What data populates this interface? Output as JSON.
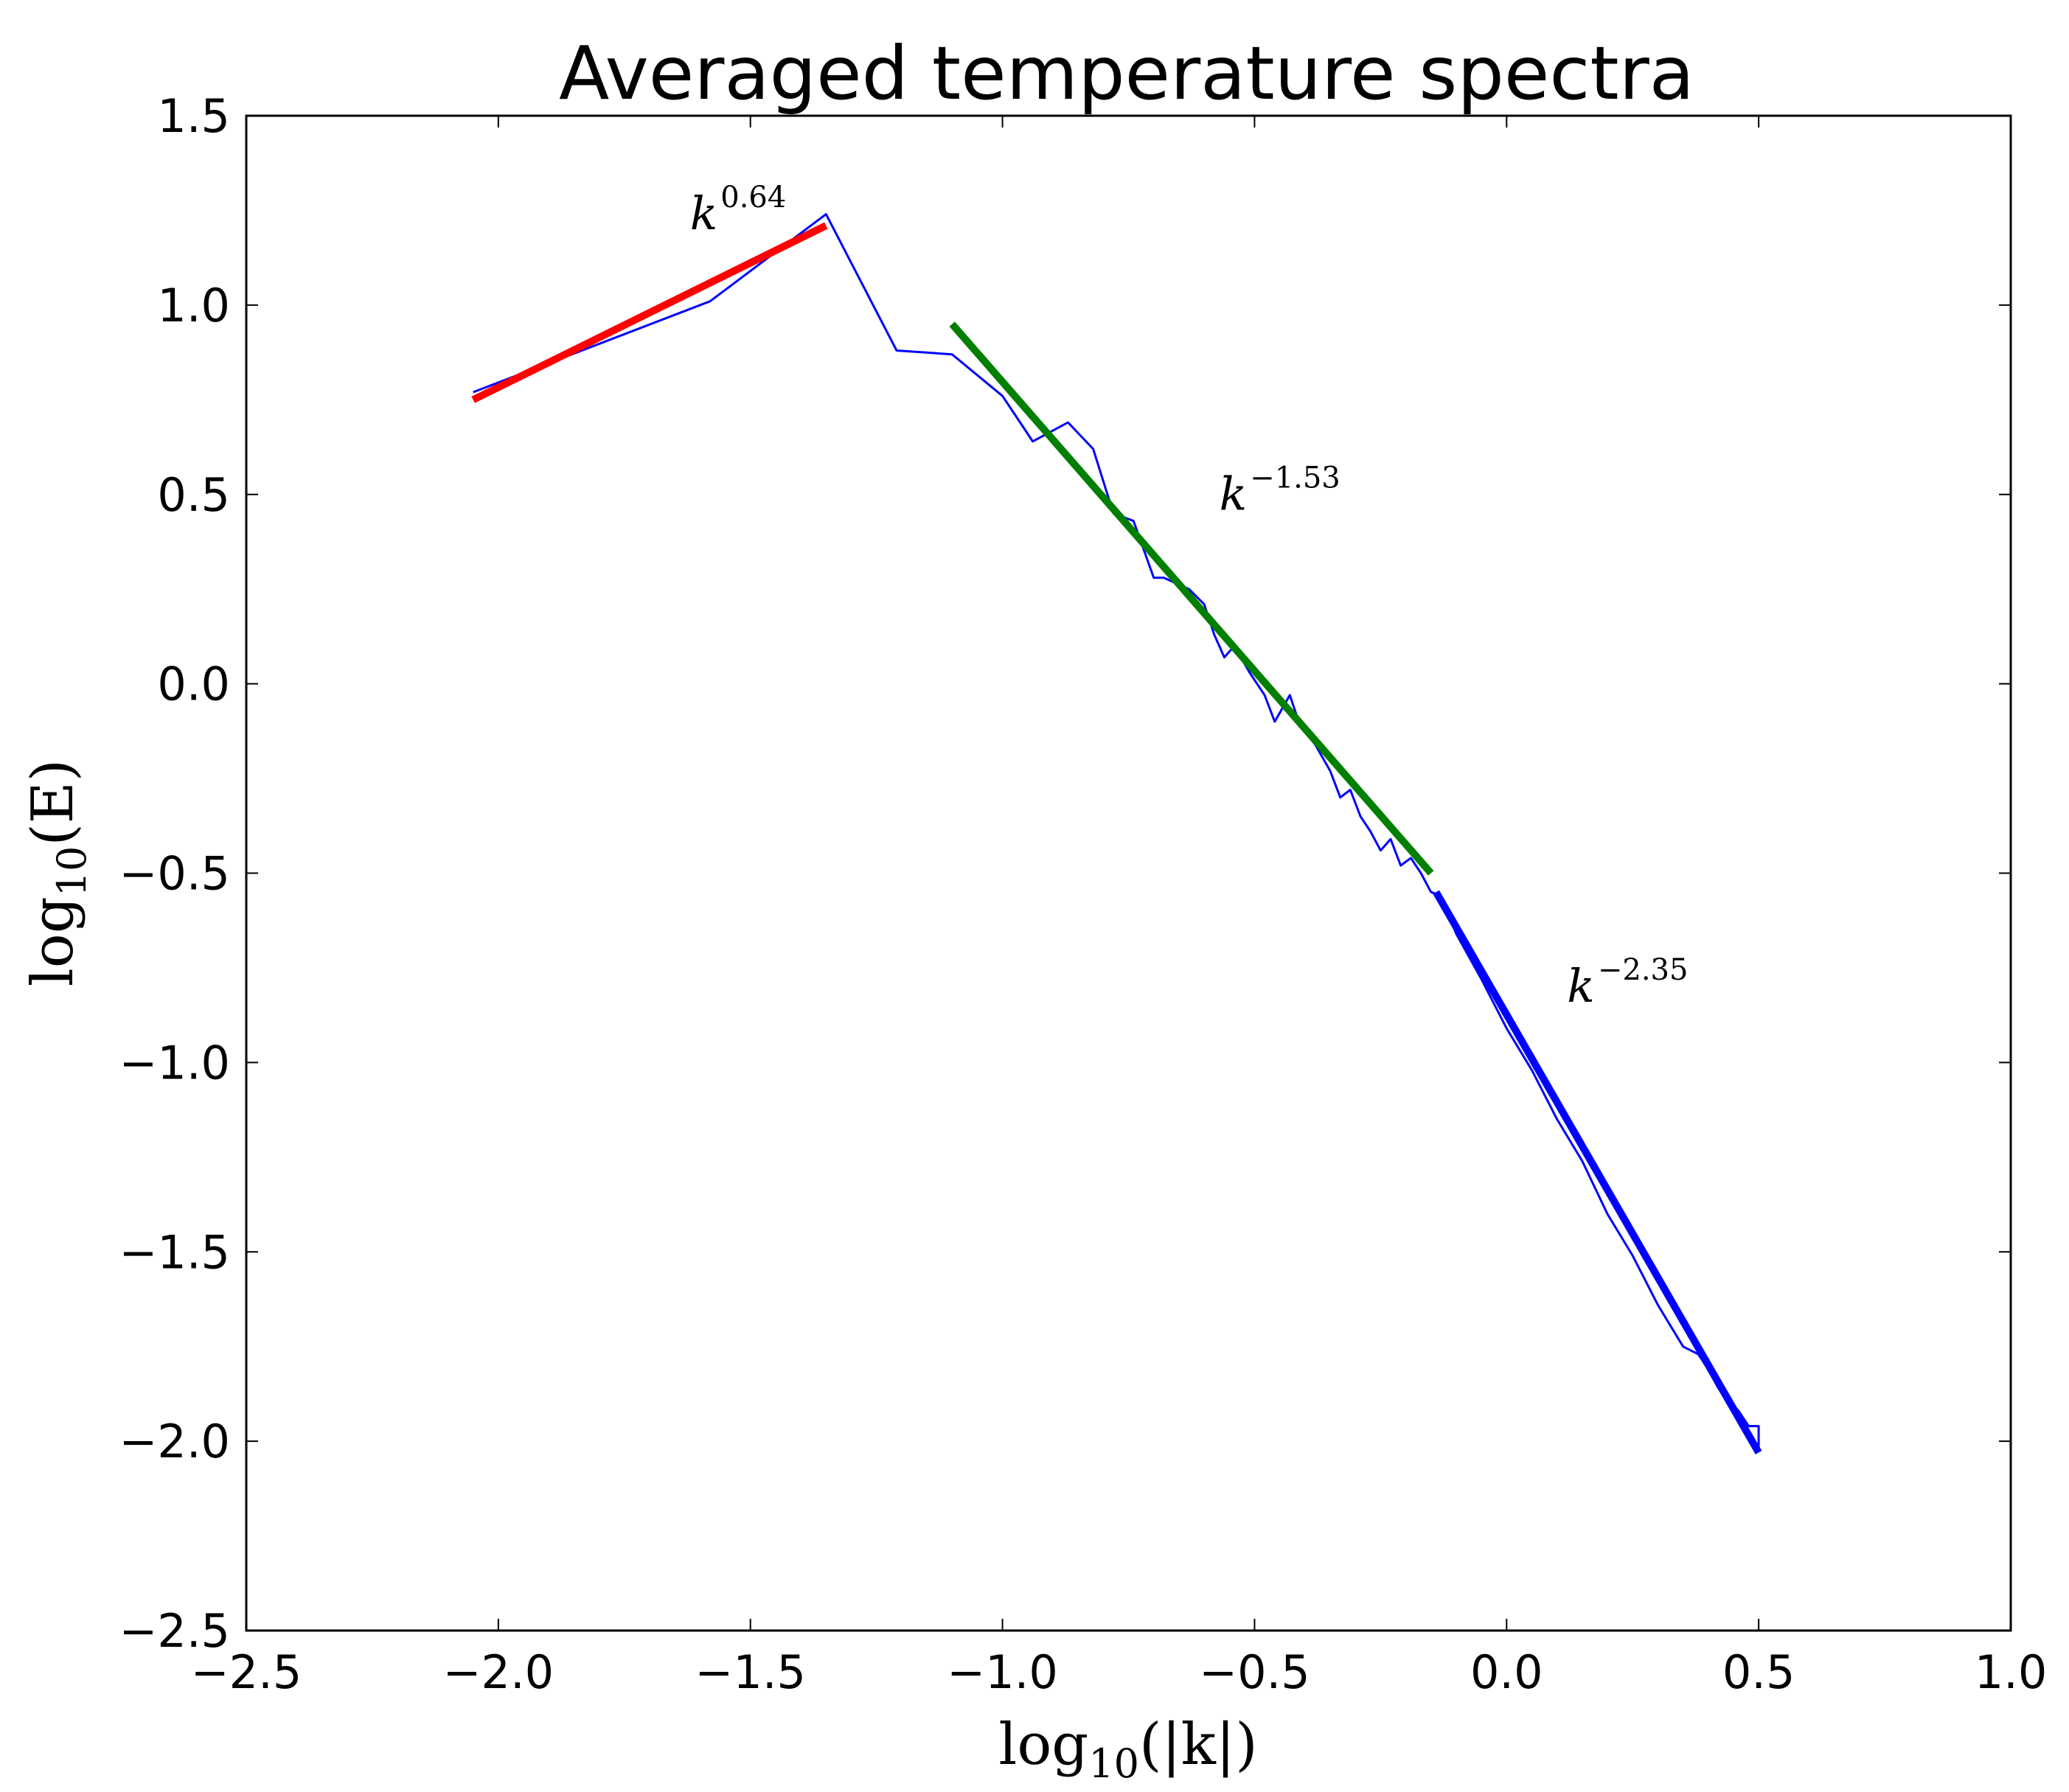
{
  "chart_data": {
    "type": "line",
    "title": "Averaged temperature spectra",
    "xlabel": {
      "prefix": "log",
      "sub": "10",
      "suffix": "(|k|)"
    },
    "ylabel": {
      "prefix": "log",
      "sub": "10",
      "suffix": "(E)"
    },
    "xlim": [
      -2.5,
      1.0
    ],
    "ylim": [
      -2.5,
      1.5
    ],
    "xticks": [
      -2.5,
      -2.0,
      -1.5,
      -1.0,
      -0.5,
      0.0,
      0.5,
      1.0
    ],
    "xtick_labels": [
      "−2.5",
      "−2.0",
      "−1.5",
      "−1.0",
      "−0.5",
      "0.0",
      "0.5",
      "1.0"
    ],
    "yticks": [
      1.5,
      1.0,
      0.5,
      0.0,
      -0.5,
      -1.0,
      -1.5,
      -2.0,
      -2.5
    ],
    "ytick_labels": [
      "1.5",
      "1.0",
      "0.5",
      "0.0",
      "−0.5",
      "−1.0",
      "−1.5",
      "−2.0",
      "−2.5"
    ],
    "grid": false,
    "series": [
      {
        "name": "spectrum",
        "color": "#0000ff",
        "x": [
          -2.05,
          -1.58,
          -1.35,
          -1.21,
          -1.1,
          -1.0,
          -0.94,
          -0.87,
          -0.82,
          -0.78,
          -0.74,
          -0.7,
          -0.68,
          -0.63,
          -0.6,
          -0.58,
          -0.56,
          -0.54,
          -0.51,
          -0.48,
          -0.46,
          -0.43,
          -0.41,
          -0.38,
          -0.35,
          -0.33,
          -0.31,
          -0.29,
          -0.27,
          -0.25,
          -0.23,
          -0.21,
          -0.19,
          -0.17,
          -0.15,
          -0.13,
          -0.1,
          -0.05,
          0.0,
          0.05,
          0.1,
          0.15,
          0.2,
          0.25,
          0.3,
          0.35,
          0.38,
          0.4,
          0.42,
          0.44,
          0.46,
          0.48,
          0.5,
          0.5
        ],
        "y": [
          0.77,
          1.01,
          1.24,
          0.88,
          0.87,
          0.76,
          0.64,
          0.69,
          0.62,
          0.45,
          0.43,
          0.28,
          0.28,
          0.25,
          0.21,
          0.13,
          0.07,
          0.1,
          0.03,
          -0.03,
          -0.1,
          -0.03,
          -0.11,
          -0.16,
          -0.23,
          -0.3,
          -0.28,
          -0.35,
          -0.39,
          -0.44,
          -0.41,
          -0.48,
          -0.46,
          -0.5,
          -0.55,
          -0.56,
          -0.66,
          -0.78,
          -0.91,
          -1.02,
          -1.15,
          -1.26,
          -1.4,
          -1.51,
          -1.64,
          -1.75,
          -1.77,
          -1.81,
          -1.86,
          -1.89,
          -1.92,
          -1.96,
          -1.96,
          -2.02
        ],
        "width": 3
      },
      {
        "name": "fit k^0.64",
        "color": "#ff0000",
        "x": [
          -2.05,
          -1.35
        ],
        "y": [
          0.75,
          1.21
        ],
        "width": 10
      },
      {
        "name": "fit k^-1.53",
        "color": "#007f00",
        "x": [
          -1.1,
          -0.15
        ],
        "y": [
          0.95,
          -0.5
        ],
        "width": 10
      },
      {
        "name": "fit k^-2.35",
        "color": "#0000ff",
        "x": [
          -0.14,
          0.5
        ],
        "y": [
          -0.55,
          -2.03
        ],
        "width": 10
      }
    ],
    "annotations": [
      {
        "base": "k",
        "exp": "0.64",
        "x": -1.62,
        "y": 1.2
      },
      {
        "base": "k",
        "exp": "−1.53",
        "x": -0.57,
        "y": 0.46
      },
      {
        "base": "k",
        "exp": "−2.35",
        "x": 0.12,
        "y": -0.84
      }
    ]
  }
}
